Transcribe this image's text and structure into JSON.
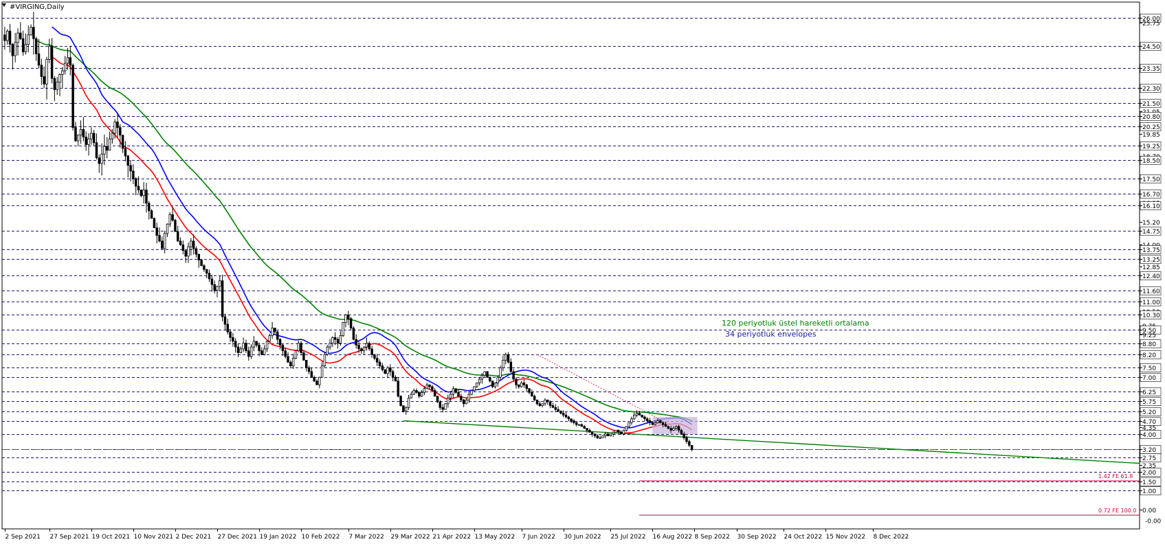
{
  "chart_data": {
    "type": "candlestick",
    "title": "#VIRGING,Daily",
    "colors": {
      "grid": "#1a1a6e",
      "ema_long": "#008000",
      "envelope_upper": "#0000ff",
      "envelope_lower": "#ff0000",
      "trendline": "#008000",
      "fe_line": "#c8003c",
      "candle": "#000000",
      "highlight": "#c8b4dc"
    },
    "ylim": [
      -0.1,
      26.3
    ],
    "price_levels": [
      "26.00",
      "25.75",
      "24.50",
      "23.35",
      "22.30",
      "21.50",
      "21.05",
      "20.80",
      "20.25",
      "19.85",
      "19.25",
      "18.70",
      "18.50",
      "17.50",
      "16.70",
      "16.25",
      "16.10",
      "15.20",
      "14.75",
      "14.00",
      "13.75",
      "13.25",
      "12.85",
      "12.40",
      "11.60",
      "11.00",
      "10.50",
      "10.30",
      "9.75",
      "9.50",
      "9.25",
      "8.80",
      "8.20",
      "7.50",
      "7.00",
      "6.25",
      "5.75",
      "5.20",
      "4.70",
      "4.35",
      "4.00",
      "3.20",
      "2.75",
      "2.35",
      "2.00",
      "1.50",
      "1.00",
      "0.00"
    ],
    "boxed_levels": [
      "26.00",
      "24.50",
      "23.35",
      "22.30",
      "21.50",
      "20.80",
      "20.25",
      "19.25",
      "18.50",
      "17.50",
      "16.70",
      "16.10",
      "14.75",
      "13.75",
      "13.25",
      "12.40",
      "11.60",
      "11.00",
      "10.30",
      "9.50",
      "8.80",
      "8.20",
      "7.50",
      "7.00",
      "6.25",
      "5.75",
      "5.20",
      "4.70",
      "4.00",
      "3.20",
      "2.75",
      "2.00",
      "1.50",
      "1.00"
    ],
    "bottom_price_label": "-0.00",
    "date_labels": [
      "2 Sep 2021",
      "27 Sep 2021",
      "19 Oct 2021",
      "10 Nov 2021",
      "2 Dec 2021",
      "27 Dec 2021",
      "19 Jan 2022",
      "10 Feb 2022",
      "7 Mar 2022",
      "29 Mar 2022",
      "21 Apr 2022",
      "13 May 2022",
      "7 Jun 2022",
      "30 Jun 2022",
      "25 Jul 2022",
      "16 Aug 2022",
      "8 Sep 2022",
      "30 Sep 2022",
      "24 Oct 2022",
      "15 Nov 2022",
      "8 Dec 2022"
    ],
    "date_label_bars": [
      0,
      17,
      33,
      49,
      65,
      81,
      97,
      113,
      131,
      147,
      163,
      179,
      197,
      213,
      231,
      247,
      263,
      279,
      297,
      313,
      331
    ],
    "total_bars": 342,
    "closes": [
      24.8,
      25.3,
      24.6,
      24.0,
      24.7,
      25.2,
      24.9,
      24.2,
      24.6,
      25.1,
      25.5,
      24.9,
      24.1,
      23.5,
      22.9,
      22.5,
      23.8,
      24.5,
      22.8,
      22.2,
      22.6,
      23.0,
      23.2,
      23.6,
      23.9,
      23.5,
      20.2,
      19.5,
      19.8,
      20.1,
      19.7,
      19.3,
      19.6,
      19.9,
      19.4,
      18.6,
      18.3,
      18.8,
      19.2,
      19.0,
      19.6,
      19.9,
      20.5,
      20.2,
      19.8,
      19.1,
      18.7,
      18.2,
      17.9,
      17.5,
      17.1,
      16.9,
      16.6,
      16.9,
      16.2,
      15.8,
      15.4,
      14.9,
      14.5,
      14.2,
      13.8,
      14.6,
      15.1,
      15.6,
      15.3,
      14.7,
      14.2,
      14.0,
      13.7,
      13.4,
      13.9,
      14.2,
      13.8,
      13.5,
      13.2,
      12.9,
      12.7,
      12.5,
      12.2,
      11.9,
      11.6,
      11.8,
      12.1,
      10.2,
      9.8,
      9.4,
      9.1,
      8.9,
      8.6,
      8.3,
      8.5,
      8.8,
      8.4,
      8.1,
      8.6,
      8.9,
      8.7,
      8.4,
      8.2,
      8.5,
      8.9,
      9.2,
      9.6,
      9.4,
      9.0,
      8.7,
      8.4,
      8.1,
      7.8,
      7.6,
      8.0,
      8.4,
      8.8,
      8.3,
      7.9,
      7.5,
      7.3,
      7.0,
      6.8,
      6.6,
      7.0,
      7.6,
      8.2,
      8.6,
      8.8,
      9.1,
      9.0,
      8.8,
      9.2,
      9.9,
      10.3,
      10.1,
      9.6,
      9.0,
      8.7,
      8.5,
      8.4,
      8.6,
      8.8,
      8.5,
      8.2,
      8.0,
      7.8,
      7.6,
      7.4,
      7.2,
      7.5,
      7.3,
      7.0,
      6.8,
      6.0,
      5.5,
      5.2,
      5.4,
      5.9,
      6.1,
      6.3,
      6.2,
      6.0,
      6.2,
      6.4,
      6.6,
      6.5,
      6.3,
      6.0,
      5.7,
      5.4,
      5.3,
      5.6,
      5.9,
      6.1,
      6.4,
      6.2,
      6.0,
      5.8,
      5.6,
      5.8,
      6.1,
      6.3,
      6.5,
      6.7,
      6.9,
      7.1,
      7.3,
      7.0,
      6.8,
      6.5,
      6.7,
      7.0,
      7.5,
      7.9,
      8.2,
      7.8,
      7.3,
      6.9,
      6.6,
      6.5,
      6.7,
      6.6,
      6.4,
      6.2,
      6.0,
      5.8,
      5.6,
      5.5,
      5.6,
      5.8,
      5.7,
      5.5,
      5.4,
      5.3,
      5.2,
      5.1,
      5.0,
      4.9,
      4.8,
      4.7,
      4.6,
      4.5,
      4.5,
      4.4,
      4.3,
      4.2,
      4.1,
      4.0,
      3.9,
      3.8,
      3.8,
      3.9,
      4.0,
      3.9,
      4.0,
      4.1,
      4.2,
      4.1,
      4.0,
      4.2,
      4.4,
      4.6,
      4.8,
      5.0,
      5.1,
      5.0,
      4.9,
      4.8,
      4.7,
      4.6,
      4.5,
      4.6,
      4.7,
      4.6,
      4.5,
      4.4,
      4.3,
      4.2,
      4.3,
      4.4,
      4.2,
      4.0,
      3.8,
      3.6,
      3.4,
      3.2
    ]
  },
  "annotations": {
    "ema_label": "120 periyotluk üstel hareketli ortalama",
    "envelope_label": "34 periyotluk envelopes",
    "fe1_label": "1.42 FE 61.8",
    "fe2_label": "0.72 FE 100.0"
  }
}
